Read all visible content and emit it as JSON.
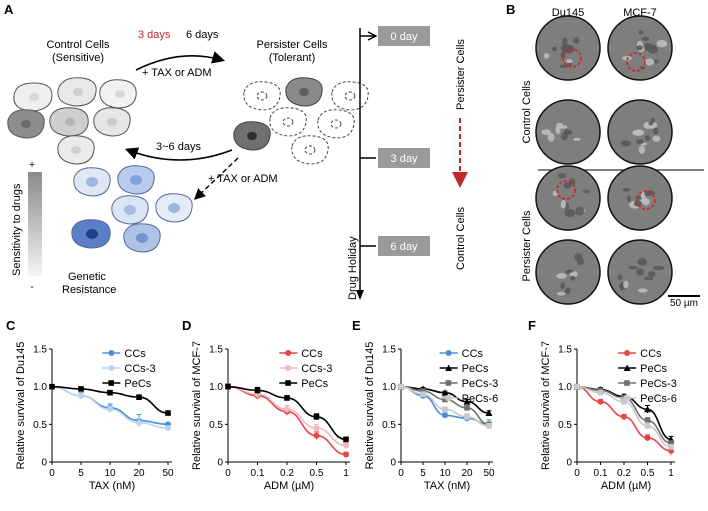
{
  "panel_labels": {
    "A": "A",
    "B": "B",
    "C": "C",
    "D": "D",
    "E": "E",
    "F": "F"
  },
  "schematic": {
    "control_title_1": "Control Cells",
    "control_title_2": "(Sensitive)",
    "persister_title_1": "Persister Cells",
    "persister_title_2": "(Tolerant)",
    "days_3": "3 days",
    "days_6": "6 days",
    "drug_top": "+ TAX or ADM",
    "drug_bottom": "+ TAX or ADM",
    "days_3_6": "3~6 days",
    "genetic_1": "Genetic",
    "genetic_2": "Resistance",
    "sensitivity": "Sensitivity to drugs",
    "plus": "+",
    "minus": "-",
    "colors": {
      "highlight_red": "#c0282b",
      "arrow": "#000000",
      "blue_cell": "#7fa0d8"
    }
  },
  "timeline": {
    "day0": "0 day",
    "day3": "3 day",
    "day6": "6 day",
    "persister_label": "Persister Cells",
    "control_label": "Control Cells",
    "axis_label": "Drug Holiday"
  },
  "microscopy": {
    "col1": "Du145",
    "col2": "MCF-7",
    "row1": "Control Cells",
    "row2": "Persister Cells",
    "scale_bar": "50 µm"
  },
  "chart_data": [
    {
      "panel": "C",
      "type": "line",
      "ylabel": "Relative survival of Du145",
      "xlabel": "TAX (nM)",
      "categories": [
        "0",
        "5",
        "10",
        "20",
        "50"
      ],
      "ylim": [
        0,
        1.5
      ],
      "yticks": [
        "0",
        "0.5",
        "1.0",
        "1.5"
      ],
      "series": [
        {
          "name": "CCs",
          "color": "#4a90d9",
          "marker": "circle",
          "values": [
            1.0,
            0.88,
            0.72,
            0.55,
            0.5
          ],
          "err": [
            0.02,
            0.04,
            0.05,
            0.08,
            0.02
          ]
        },
        {
          "name": "CCs-3",
          "color": "#b9d4ec",
          "marker": "circle",
          "values": [
            1.0,
            0.88,
            0.7,
            0.52,
            0.45
          ],
          "err": [
            0.02,
            0.03,
            0.04,
            0.06,
            0.03
          ]
        },
        {
          "name": "PeCs",
          "color": "#000000",
          "marker": "square",
          "values": [
            1.0,
            0.97,
            0.92,
            0.86,
            0.65
          ],
          "err": [
            0.02,
            0.02,
            0.03,
            0.03,
            0.02
          ]
        }
      ]
    },
    {
      "panel": "D",
      "type": "line",
      "ylabel": "Relative survival of MCF-7",
      "xlabel": "ADM (µM)",
      "categories": [
        "0",
        "0.1",
        "0.2",
        "0.5",
        "1"
      ],
      "ylim": [
        0,
        1.5
      ],
      "yticks": [
        "0",
        "0.5",
        "1.0",
        "1.5"
      ],
      "series": [
        {
          "name": "CCs",
          "color": "#e84545",
          "marker": "circle",
          "values": [
            1.0,
            0.88,
            0.67,
            0.35,
            0.1
          ],
          "err": [
            0.04,
            0.04,
            0.05,
            0.05,
            0.03
          ]
        },
        {
          "name": "CCs-3",
          "color": "#f2b6bd",
          "marker": "circle",
          "values": [
            1.0,
            0.9,
            0.7,
            0.45,
            0.22
          ],
          "err": [
            0.03,
            0.05,
            0.05,
            0.05,
            0.04
          ]
        },
        {
          "name": "PeCs",
          "color": "#000000",
          "marker": "square",
          "values": [
            1.0,
            0.95,
            0.85,
            0.6,
            0.3
          ],
          "err": [
            0.03,
            0.04,
            0.03,
            0.04,
            0.03
          ]
        }
      ]
    },
    {
      "panel": "E",
      "type": "line",
      "ylabel": "Relative survival of Du145",
      "xlabel": "TAX (nM)",
      "categories": [
        "0",
        "5",
        "10",
        "20",
        "50"
      ],
      "ylim": [
        0,
        1.5
      ],
      "yticks": [
        "0",
        "0.5",
        "1.0",
        "1.5"
      ],
      "series": [
        {
          "name": "CCs",
          "color": "#4a90d9",
          "marker": "circle",
          "values": [
            1.0,
            0.88,
            0.62,
            0.58,
            0.5
          ],
          "err": [
            0.02,
            0.04,
            0.03,
            0.02,
            0.06
          ]
        },
        {
          "name": "PeCs",
          "color": "#000000",
          "marker": "triangle",
          "values": [
            1.0,
            0.97,
            0.92,
            0.8,
            0.65
          ],
          "err": [
            0.02,
            0.02,
            0.02,
            0.03,
            0.03
          ]
        },
        {
          "name": "PeCs-3",
          "color": "#707070",
          "marker": "square",
          "values": [
            1.0,
            0.94,
            0.83,
            0.72,
            0.5
          ],
          "err": [
            0.02,
            0.03,
            0.03,
            0.04,
            0.03
          ]
        },
        {
          "name": "PeCs-6",
          "color": "#c9c9c9",
          "marker": "square",
          "values": [
            1.0,
            0.9,
            0.7,
            0.6,
            0.48
          ],
          "err": [
            0.02,
            0.03,
            0.03,
            0.04,
            0.03
          ]
        }
      ]
    },
    {
      "panel": "F",
      "type": "line",
      "ylabel": "Relative survival of MCF-7",
      "xlabel": "ADM (µM)",
      "categories": [
        "0",
        "0.1",
        "0.2",
        "0.5",
        "1"
      ],
      "ylim": [
        0,
        1.5
      ],
      "yticks": [
        "0",
        "0.5",
        "1.0",
        "1.5"
      ],
      "series": [
        {
          "name": "CCs",
          "color": "#e84545",
          "marker": "circle",
          "values": [
            1.0,
            0.8,
            0.6,
            0.32,
            0.15
          ],
          "err": [
            0.03,
            0.03,
            0.03,
            0.04,
            0.06
          ]
        },
        {
          "name": "PeCs",
          "color": "#000000",
          "marker": "triangle",
          "values": [
            1.0,
            0.96,
            0.87,
            0.7,
            0.3
          ],
          "err": [
            0.02,
            0.03,
            0.03,
            0.05,
            0.04
          ]
        },
        {
          "name": "PeCs-3",
          "color": "#707070",
          "marker": "square",
          "values": [
            1.0,
            0.95,
            0.85,
            0.55,
            0.25
          ],
          "err": [
            0.02,
            0.03,
            0.03,
            0.04,
            0.03
          ]
        },
        {
          "name": "PeCs-6",
          "color": "#c9c9c9",
          "marker": "square",
          "values": [
            1.0,
            0.92,
            0.8,
            0.48,
            0.2
          ],
          "err": [
            0.02,
            0.03,
            0.03,
            0.04,
            0.03
          ]
        }
      ]
    }
  ]
}
